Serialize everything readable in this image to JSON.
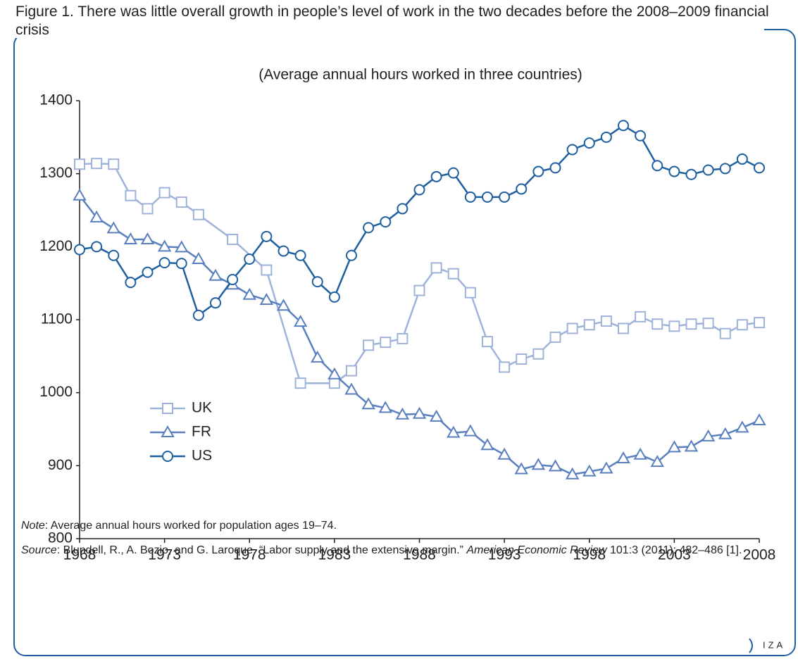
{
  "chart_data": {
    "type": "line",
    "title": "Figure 1. There was little overall growth in people’s level of work in the two decades before the 2008–2009 financial crisis",
    "subtitle": "(Average annual hours worked in three countries)",
    "x": [
      1968,
      1969,
      1970,
      1971,
      1972,
      1973,
      1974,
      1975,
      1976,
      1977,
      1978,
      1979,
      1980,
      1981,
      1982,
      1983,
      1984,
      1985,
      1986,
      1987,
      1988,
      1989,
      1990,
      1991,
      1992,
      1993,
      1994,
      1995,
      1996,
      1997,
      1998,
      1999,
      2000,
      2001,
      2002,
      2003,
      2004,
      2005,
      2006,
      2007,
      2008
    ],
    "series": [
      {
        "name": "UK",
        "color": "#9fb3da",
        "marker": "square",
        "x": [
          1968,
          1969,
          1970,
          1971,
          1972,
          1973,
          1974,
          1975,
          1977,
          1979,
          1981,
          1983,
          1984,
          1985,
          1986,
          1987,
          1988,
          1989,
          1990,
          1991,
          1992,
          1993,
          1994,
          1995,
          1996,
          1997,
          1998,
          1999,
          2000,
          2001,
          2002,
          2003,
          2004,
          2005,
          2006,
          2007,
          2008
        ],
        "values": [
          1313,
          1314,
          1313,
          1270,
          1252,
          1274,
          1261,
          1244,
          1210,
          1168,
          1013,
          1013,
          1030,
          1065,
          1069,
          1074,
          1140,
          1171,
          1163,
          1137,
          1070,
          1035,
          1046,
          1053,
          1076,
          1088,
          1093,
          1098,
          1088,
          1104,
          1094,
          1091,
          1094,
          1095,
          1081,
          1093,
          1096
        ]
      },
      {
        "name": "FR",
        "color": "#5a7fbf",
        "marker": "triangle",
        "values": [
          1270,
          1240,
          1225,
          1210,
          1210,
          1200,
          1199,
          1183,
          1160,
          1148,
          1134,
          1127,
          1119,
          1097,
          1048,
          1025,
          1004,
          984,
          979,
          970,
          971,
          967,
          945,
          947,
          928,
          915,
          895,
          901,
          899,
          888,
          892,
          896,
          910,
          915,
          905,
          925,
          926,
          940,
          943,
          952,
          962
        ]
      },
      {
        "name": "US",
        "color": "#1f5f9f",
        "marker": "circle",
        "values": [
          1196,
          1200,
          1188,
          1151,
          1165,
          1178,
          1177,
          1106,
          1123,
          1155,
          1183,
          1214,
          1194,
          1188,
          1152,
          1131,
          1188,
          1226,
          1234,
          1252,
          1278,
          1296,
          1301,
          1268,
          1268,
          1268,
          1279,
          1303,
          1308,
          1333,
          1342,
          1350,
          1366,
          1352,
          1311,
          1303,
          1299,
          1305,
          1307,
          1320,
          1308
        ]
      }
    ],
    "xlim": [
      1968,
      2008
    ],
    "xticks": [
      1968,
      1973,
      1978,
      1983,
      1988,
      1993,
      1998,
      2003,
      2008
    ],
    "ylim": [
      800,
      1400
    ],
    "yticks": [
      800,
      900,
      1000,
      1100,
      1200,
      1300,
      1400
    ],
    "grid": false,
    "note": {
      "lead": "Note",
      "text": ": Average annual hours worked for population ages 19–74."
    },
    "source": {
      "lead": "Source",
      "text": ": Blundell, R., A. Bozio, and G. Laroque. “Labor supply and the extensive margin.” ",
      "journal": "American Economic Review",
      "rest": " 101:3 (2011): 482–486 [1]."
    },
    "logo": "IZA"
  }
}
